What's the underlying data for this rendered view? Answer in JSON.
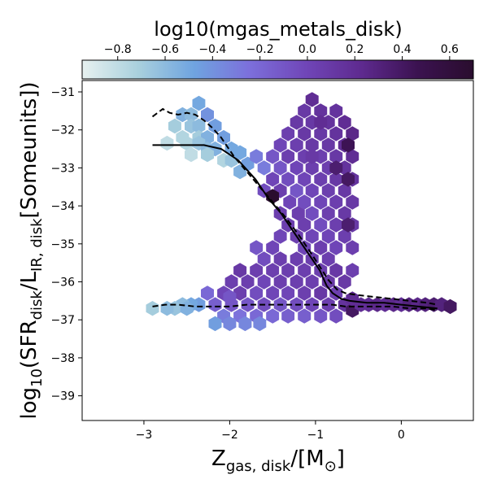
{
  "chart_data": {
    "type": "heatmap",
    "subtype": "hexbin",
    "colorbar": {
      "label": "log10(mgas_metals_disk)",
      "location": "top",
      "range": [
        -0.95,
        0.7
      ],
      "ticks": [
        -0.8,
        -0.6,
        -0.4,
        -0.2,
        0.0,
        0.2,
        0.4,
        0.6
      ],
      "tick_labels": [
        "−0.8",
        "−0.6",
        "−0.4",
        "−0.2",
        "0.0",
        "0.2",
        "0.4",
        "0.6"
      ],
      "colormap": [
        "#e7f1f0",
        "#a9d0dd",
        "#6fa4e0",
        "#7c6fdb",
        "#7046b8",
        "#5e2a8f",
        "#3b1250",
        "#2a0d2e"
      ]
    },
    "x_axis": {
      "label_main": "Z",
      "label_sub": "gas, disk",
      "label_tail": "/[M",
      "label_tail_sub": "⊙",
      "label_close": "]",
      "range": [
        -3.72,
        0.84
      ],
      "ticks": [
        -3,
        -2,
        -1,
        0
      ],
      "tick_labels": [
        "−3",
        "−2",
        "−1",
        "0"
      ]
    },
    "y_axis": {
      "label_prefix": "log",
      "label_prefix_sub": "10",
      "label_a": "(SFR",
      "label_a_sub": "disk",
      "label_b": "/L",
      "label_b_sub": "IR, disk",
      "label_c": "[Someunits])",
      "range": [
        -39.65,
        -30.7
      ],
      "ticks": [
        -31,
        -32,
        -33,
        -34,
        -35,
        -36,
        -37,
        -38,
        -39
      ],
      "tick_labels": [
        "−31",
        "−32",
        "−33",
        "−34",
        "−35",
        "−36",
        "−37",
        "−38",
        "−39"
      ]
    },
    "hexbins": [
      {
        "x": -2.36,
        "y": -31.3,
        "c": -0.5
      },
      {
        "x": -2.55,
        "y": -31.6,
        "c": -0.55
      },
      {
        "x": -2.45,
        "y": -31.6,
        "c": -0.6
      },
      {
        "x": -2.26,
        "y": -31.6,
        "c": -0.4
      },
      {
        "x": -2.64,
        "y": -31.9,
        "c": -0.7
      },
      {
        "x": -2.45,
        "y": -31.9,
        "c": -0.65
      },
      {
        "x": -2.36,
        "y": -31.9,
        "c": -0.6
      },
      {
        "x": -2.17,
        "y": -31.9,
        "c": -0.45
      },
      {
        "x": -2.55,
        "y": -32.2,
        "c": -0.75
      },
      {
        "x": -2.36,
        "y": -32.2,
        "c": -0.7
      },
      {
        "x": -2.26,
        "y": -32.2,
        "c": -0.55
      },
      {
        "x": -2.07,
        "y": -32.2,
        "c": -0.45
      },
      {
        "x": -2.73,
        "y": -32.35,
        "c": -0.8
      },
      {
        "x": -2.5,
        "y": -32.35,
        "c": -0.75
      },
      {
        "x": -2.36,
        "y": -32.35,
        "c": -0.65
      },
      {
        "x": -2.26,
        "y": -32.5,
        "c": -0.6
      },
      {
        "x": -2.17,
        "y": -32.5,
        "c": -0.55
      },
      {
        "x": -1.98,
        "y": -32.5,
        "c": -0.5
      },
      {
        "x": -2.45,
        "y": -32.65,
        "c": -0.8
      },
      {
        "x": -2.26,
        "y": -32.65,
        "c": -0.7
      },
      {
        "x": -2.07,
        "y": -32.8,
        "c": -0.75
      },
      {
        "x": -1.98,
        "y": -32.8,
        "c": -0.65
      },
      {
        "x": -1.88,
        "y": -32.6,
        "c": -0.5
      },
      {
        "x": -1.79,
        "y": -32.9,
        "c": -0.45
      },
      {
        "x": -1.88,
        "y": -33.1,
        "c": -0.55
      },
      {
        "x": -1.69,
        "y": -32.7,
        "c": -0.3
      },
      {
        "x": -1.6,
        "y": -33.0,
        "c": -0.3
      },
      {
        "x": -1.5,
        "y": -32.7,
        "c": -0.1
      },
      {
        "x": -1.41,
        "y": -32.4,
        "c": 0.0
      },
      {
        "x": -1.41,
        "y": -33.0,
        "c": -0.1
      },
      {
        "x": -1.32,
        "y": -32.1,
        "c": 0.05
      },
      {
        "x": -1.32,
        "y": -32.7,
        "c": 0.05
      },
      {
        "x": -1.32,
        "y": -33.3,
        "c": -0.05
      },
      {
        "x": -1.22,
        "y": -31.8,
        "c": 0.1
      },
      {
        "x": -1.22,
        "y": -32.4,
        "c": 0.05
      },
      {
        "x": -1.22,
        "y": -33.0,
        "c": 0.0
      },
      {
        "x": -1.22,
        "y": -33.6,
        "c": -0.1
      },
      {
        "x": -1.13,
        "y": -31.5,
        "c": 0.1
      },
      {
        "x": -1.13,
        "y": -32.1,
        "c": 0.1
      },
      {
        "x": -1.13,
        "y": -32.7,
        "c": 0.05
      },
      {
        "x": -1.13,
        "y": -33.3,
        "c": 0.0
      },
      {
        "x": -1.13,
        "y": -33.9,
        "c": -0.05
      },
      {
        "x": -1.04,
        "y": -31.2,
        "c": 0.2
      },
      {
        "x": -1.04,
        "y": -31.8,
        "c": 0.1
      },
      {
        "x": -1.04,
        "y": -32.4,
        "c": 0.1
      },
      {
        "x": -1.04,
        "y": -33.0,
        "c": 0.05
      },
      {
        "x": -1.04,
        "y": -33.6,
        "c": 0.0
      },
      {
        "x": -1.04,
        "y": -34.2,
        "c": -0.05
      },
      {
        "x": -0.94,
        "y": -31.5,
        "c": 0.15
      },
      {
        "x": -0.94,
        "y": -32.1,
        "c": 0.1
      },
      {
        "x": -0.94,
        "y": -32.7,
        "c": 0.05
      },
      {
        "x": -0.94,
        "y": -33.3,
        "c": 0.05
      },
      {
        "x": -0.94,
        "y": -33.9,
        "c": 0.0
      },
      {
        "x": -0.94,
        "y": -34.5,
        "c": -0.05
      },
      {
        "x": -0.85,
        "y": -31.8,
        "c": 0.15
      },
      {
        "x": -0.85,
        "y": -32.4,
        "c": 0.1
      },
      {
        "x": -0.85,
        "y": -33.0,
        "c": 0.05
      },
      {
        "x": -0.85,
        "y": -33.6,
        "c": 0.05
      },
      {
        "x": -0.85,
        "y": -34.2,
        "c": 0.05
      },
      {
        "x": -0.85,
        "y": -34.8,
        "c": 0.0
      },
      {
        "x": -0.76,
        "y": -31.5,
        "c": 0.15
      },
      {
        "x": -0.76,
        "y": -32.1,
        "c": 0.15
      },
      {
        "x": -0.76,
        "y": -32.7,
        "c": 0.1
      },
      {
        "x": -0.76,
        "y": -33.3,
        "c": 0.1
      },
      {
        "x": -0.76,
        "y": -33.9,
        "c": 0.05
      },
      {
        "x": -0.76,
        "y": -34.5,
        "c": 0.05
      },
      {
        "x": -0.76,
        "y": -35.1,
        "c": 0.0
      },
      {
        "x": -0.66,
        "y": -31.8,
        "c": 0.2
      },
      {
        "x": -0.66,
        "y": -32.4,
        "c": 0.2
      },
      {
        "x": -0.66,
        "y": -33.0,
        "c": 0.15
      },
      {
        "x": -0.66,
        "y": -33.6,
        "c": 0.1
      },
      {
        "x": -0.66,
        "y": -34.2,
        "c": 0.1
      },
      {
        "x": -0.66,
        "y": -34.8,
        "c": 0.05
      },
      {
        "x": -0.57,
        "y": -32.1,
        "c": 0.25
      },
      {
        "x": -0.57,
        "y": -32.7,
        "c": 0.2
      },
      {
        "x": -0.57,
        "y": -33.3,
        "c": 0.15
      },
      {
        "x": -0.57,
        "y": -33.9,
        "c": 0.1
      },
      {
        "x": -0.57,
        "y": -34.5,
        "c": 0.1
      },
      {
        "x": -0.57,
        "y": -35.1,
        "c": 0.05
      },
      {
        "x": -0.57,
        "y": -35.7,
        "c": 0.05
      },
      {
        "x": -0.94,
        "y": -31.8,
        "c": 0.2
      },
      {
        "x": -1.04,
        "y": -32.7,
        "c": 0.1
      },
      {
        "x": -0.62,
        "y": -32.4,
        "c": 0.45
      },
      {
        "x": -0.62,
        "y": -33.3,
        "c": 0.4
      },
      {
        "x": -0.62,
        "y": -34.5,
        "c": 0.35
      },
      {
        "x": -0.76,
        "y": -33.0,
        "c": 0.35
      },
      {
        "x": -1.2,
        "y": -34.2,
        "c": 0.05
      },
      {
        "x": -1.3,
        "y": -33.9,
        "c": 0.0
      },
      {
        "x": -1.41,
        "y": -33.6,
        "c": 0.05
      },
      {
        "x": -1.5,
        "y": -33.3,
        "c": 0.0
      },
      {
        "x": -1.6,
        "y": -33.6,
        "c": -0.05
      },
      {
        "x": -1.5,
        "y": -33.75,
        "c": 0.7
      },
      {
        "x": -1.41,
        "y": -34.2,
        "c": 0.05
      },
      {
        "x": -1.32,
        "y": -34.5,
        "c": 0.05
      },
      {
        "x": -1.22,
        "y": -34.8,
        "c": 0.05
      },
      {
        "x": -1.13,
        "y": -34.5,
        "c": 0.05
      },
      {
        "x": -1.13,
        "y": -35.1,
        "c": 0.0
      },
      {
        "x": -1.04,
        "y": -34.8,
        "c": 0.0
      },
      {
        "x": -1.04,
        "y": -35.4,
        "c": 0.05
      },
      {
        "x": -0.94,
        "y": -35.1,
        "c": 0.05
      },
      {
        "x": -0.94,
        "y": -35.7,
        "c": 0.05
      },
      {
        "x": -0.85,
        "y": -35.4,
        "c": 0.05
      },
      {
        "x": -0.85,
        "y": -36.0,
        "c": 0.1
      },
      {
        "x": -0.76,
        "y": -35.7,
        "c": 0.1
      },
      {
        "x": -0.76,
        "y": -36.3,
        "c": 0.05
      },
      {
        "x": -0.66,
        "y": -36.0,
        "c": 0.1
      },
      {
        "x": -0.66,
        "y": -36.6,
        "c": 0.15
      },
      {
        "x": -1.41,
        "y": -34.8,
        "c": 0.0
      },
      {
        "x": -1.41,
        "y": -35.4,
        "c": 0.05
      },
      {
        "x": -1.5,
        "y": -35.1,
        "c": 0.0
      },
      {
        "x": -1.5,
        "y": -35.7,
        "c": 0.05
      },
      {
        "x": -1.6,
        "y": -35.4,
        "c": -0.05
      },
      {
        "x": -1.6,
        "y": -36.0,
        "c": 0.0
      },
      {
        "x": -1.69,
        "y": -35.1,
        "c": -0.1
      },
      {
        "x": -1.69,
        "y": -35.7,
        "c": 0.05
      },
      {
        "x": -1.79,
        "y": -36.0,
        "c": 0.05
      },
      {
        "x": -1.88,
        "y": -35.7,
        "c": 0.1
      },
      {
        "x": -1.98,
        "y": -36.0,
        "c": 0.05
      },
      {
        "x": -1.88,
        "y": -36.3,
        "c": 0.05
      },
      {
        "x": -2.07,
        "y": -36.3,
        "c": 0.0
      },
      {
        "x": -1.32,
        "y": -35.7,
        "c": 0.05
      },
      {
        "x": -1.22,
        "y": -35.4,
        "c": 0.05
      },
      {
        "x": -1.22,
        "y": -36.0,
        "c": 0.05
      },
      {
        "x": -1.13,
        "y": -35.7,
        "c": 0.05
      },
      {
        "x": -1.13,
        "y": -36.3,
        "c": 0.05
      },
      {
        "x": -1.04,
        "y": -36.0,
        "c": 0.05
      },
      {
        "x": -0.94,
        "y": -36.3,
        "c": 0.1
      },
      {
        "x": -1.32,
        "y": -36.3,
        "c": 0.0
      },
      {
        "x": -1.41,
        "y": -36.0,
        "c": 0.05
      },
      {
        "x": -1.5,
        "y": -36.3,
        "c": 0.0
      },
      {
        "x": -1.6,
        "y": -36.6,
        "c": -0.05
      },
      {
        "x": -1.69,
        "y": -36.3,
        "c": -0.05
      },
      {
        "x": -1.79,
        "y": -36.6,
        "c": -0.1
      },
      {
        "x": -1.98,
        "y": -36.6,
        "c": -0.1
      },
      {
        "x": -2.17,
        "y": -36.6,
        "c": -0.15
      },
      {
        "x": -2.26,
        "y": -36.3,
        "c": -0.2
      },
      {
        "x": -2.36,
        "y": -36.6,
        "c": -0.45
      },
      {
        "x": -2.45,
        "y": -36.6,
        "c": -0.5
      },
      {
        "x": -2.55,
        "y": -36.6,
        "c": -0.6
      },
      {
        "x": -2.64,
        "y": -36.7,
        "c": -0.65
      },
      {
        "x": -2.5,
        "y": -36.7,
        "c": -0.55
      },
      {
        "x": -2.73,
        "y": -36.7,
        "c": -0.6
      },
      {
        "x": -2.07,
        "y": -36.9,
        "c": -0.3
      },
      {
        "x": -1.88,
        "y": -36.9,
        "c": -0.25
      },
      {
        "x": -1.69,
        "y": -36.9,
        "c": -0.2
      },
      {
        "x": -1.5,
        "y": -36.9,
        "c": -0.2
      },
      {
        "x": -1.32,
        "y": -36.9,
        "c": -0.15
      },
      {
        "x": -1.13,
        "y": -36.9,
        "c": -0.15
      },
      {
        "x": -0.94,
        "y": -36.9,
        "c": -0.1
      },
      {
        "x": -0.76,
        "y": -36.9,
        "c": -0.05
      },
      {
        "x": -2.0,
        "y": -37.1,
        "c": -0.35
      },
      {
        "x": -1.82,
        "y": -37.1,
        "c": -0.35
      },
      {
        "x": -1.65,
        "y": -37.1,
        "c": -0.35
      },
      {
        "x": -1.41,
        "y": -36.6,
        "c": -0.1
      },
      {
        "x": -1.22,
        "y": -36.6,
        "c": -0.05
      },
      {
        "x": -1.04,
        "y": -36.6,
        "c": 0.0
      },
      {
        "x": -0.85,
        "y": -36.6,
        "c": 0.05
      },
      {
        "x": -0.57,
        "y": -36.75,
        "c": 0.4
      },
      {
        "x": -0.57,
        "y": -36.45,
        "c": 0.2
      },
      {
        "x": -0.47,
        "y": -36.6,
        "c": 0.2
      },
      {
        "x": -0.38,
        "y": -36.6,
        "c": 0.2
      },
      {
        "x": -0.28,
        "y": -36.6,
        "c": 0.25
      },
      {
        "x": -0.19,
        "y": -36.6,
        "c": 0.2
      },
      {
        "x": -0.09,
        "y": -36.6,
        "c": 0.25
      },
      {
        "x": 0.0,
        "y": -36.6,
        "c": 0.2
      },
      {
        "x": 0.09,
        "y": -36.6,
        "c": 0.3
      },
      {
        "x": 0.19,
        "y": -36.6,
        "c": 0.25
      },
      {
        "x": 0.28,
        "y": -36.6,
        "c": 0.3
      },
      {
        "x": 0.38,
        "y": -36.6,
        "c": 0.35
      },
      {
        "x": 0.47,
        "y": -36.6,
        "c": 0.3
      },
      {
        "x": 0.57,
        "y": -36.65,
        "c": 0.4
      },
      {
        "x": -2.17,
        "y": -37.1,
        "c": -0.45
      },
      {
        "x": -2.9,
        "y": -36.7,
        "c": -0.7
      },
      {
        "x": -2.0,
        "y": -36.4,
        "c": -0.1
      }
    ],
    "lines": [
      {
        "style": "solid",
        "x": [
          -2.9,
          -2.6,
          -2.3,
          -2.1,
          -1.9,
          -1.7,
          -1.55,
          -1.4,
          -1.25,
          -1.1,
          -0.95,
          -0.87,
          -0.8,
          -0.7,
          -0.6,
          -0.4,
          -0.2,
          0.0,
          0.2,
          0.42
        ],
        "y": [
          -32.4,
          -32.4,
          -32.4,
          -32.5,
          -32.8,
          -33.3,
          -33.8,
          -34.2,
          -34.7,
          -35.2,
          -35.7,
          -36.1,
          -36.3,
          -36.45,
          -36.5,
          -36.55,
          -36.55,
          -36.6,
          -36.65,
          -36.7
        ]
      },
      {
        "style": "dashed",
        "x": [
          -2.9,
          -2.78,
          -2.7,
          -2.6,
          -2.5,
          -2.4,
          -2.3,
          -2.2,
          -2.1,
          -1.95,
          -1.8,
          -1.65,
          -1.5,
          -1.35,
          -1.2,
          -1.05,
          -0.95,
          -0.85,
          -0.75,
          -0.65,
          -0.5,
          -0.3,
          -0.1,
          0.1,
          0.3,
          0.42
        ],
        "y": [
          -31.65,
          -31.45,
          -31.55,
          -31.6,
          -31.55,
          -31.6,
          -31.75,
          -31.95,
          -32.2,
          -32.7,
          -33.1,
          -33.5,
          -33.9,
          -34.3,
          -34.75,
          -35.25,
          -35.6,
          -35.95,
          -36.2,
          -36.3,
          -36.35,
          -36.4,
          -36.45,
          -36.5,
          -36.55,
          -36.6
        ]
      },
      {
        "style": "dashed",
        "x": [
          -2.9,
          -2.75,
          -2.6,
          -2.4,
          -2.2,
          -2.0,
          -1.8,
          -1.6,
          -1.4,
          -1.2,
          -1.0,
          -0.8,
          -0.65,
          -0.5,
          -0.3,
          -0.1,
          0.1,
          0.3,
          0.42
        ],
        "y": [
          -36.65,
          -36.6,
          -36.6,
          -36.65,
          -36.65,
          -36.65,
          -36.6,
          -36.6,
          -36.6,
          -36.6,
          -36.6,
          -36.6,
          -36.65,
          -36.65,
          -36.65,
          -36.65,
          -36.7,
          -36.7,
          -36.75
        ]
      }
    ]
  }
}
